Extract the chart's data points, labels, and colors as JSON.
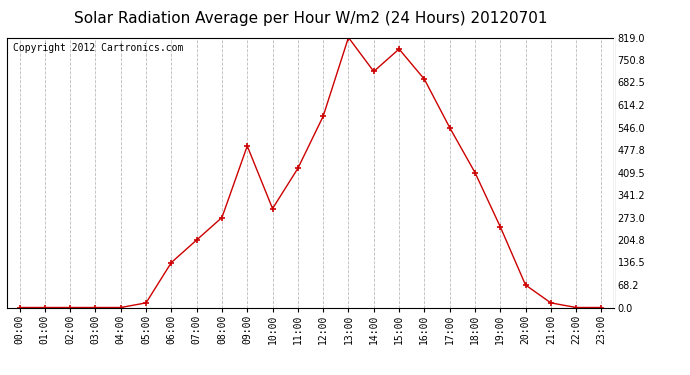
{
  "title": "Solar Radiation Average per Hour W/m2 (24 Hours) 20120701",
  "copyright_text": "Copyright 2012 Cartronics.com",
  "hours": [
    "00:00",
    "01:00",
    "02:00",
    "03:00",
    "04:00",
    "05:00",
    "06:00",
    "07:00",
    "08:00",
    "09:00",
    "10:00",
    "11:00",
    "12:00",
    "13:00",
    "14:00",
    "15:00",
    "16:00",
    "17:00",
    "18:00",
    "19:00",
    "20:00",
    "21:00",
    "22:00",
    "23:00"
  ],
  "values": [
    0.0,
    0.0,
    0.0,
    0.0,
    0.0,
    14.0,
    136.5,
    204.8,
    273.0,
    490.0,
    300.0,
    422.0,
    580.0,
    819.0,
    716.0,
    784.0,
    692.5,
    546.0,
    409.5,
    245.0,
    68.2,
    14.0,
    0.0,
    0.0
  ],
  "line_color": "#cc0000",
  "marker": "+",
  "marker_size": 5,
  "marker_color": "#cc0000",
  "bg_color": "#ffffff",
  "grid_color": "#bbbbbb",
  "ymin": 0.0,
  "ymax": 819.0,
  "ytick_values": [
    0.0,
    68.2,
    136.5,
    204.8,
    273.0,
    341.2,
    409.5,
    477.8,
    546.0,
    614.2,
    682.5,
    750.8,
    819.0
  ],
  "title_fontsize": 11,
  "copyright_fontsize": 7,
  "tick_fontsize": 7,
  "axis_label_color": "#000000"
}
